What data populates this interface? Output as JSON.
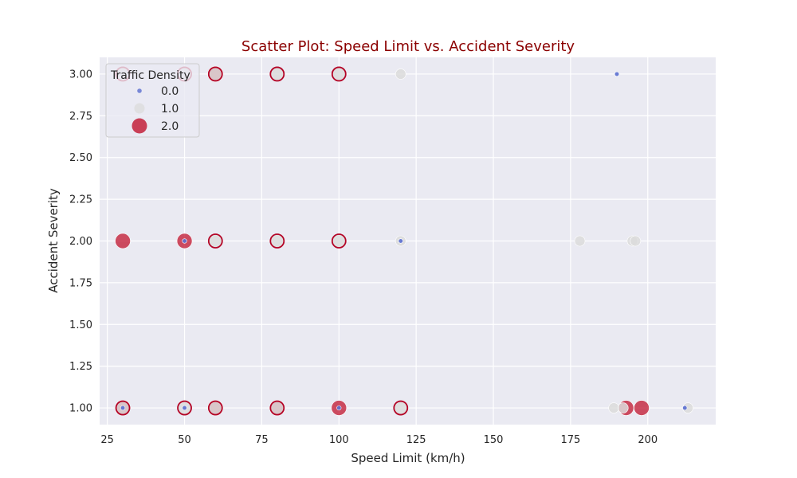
{
  "chart_data": {
    "type": "scatter",
    "title": "Scatter Plot: Speed Limit vs. Accident Severity",
    "xlabel": "Speed Limit (km/h)",
    "ylabel": "Accident Severity",
    "xlim": [
      22.5,
      222
    ],
    "ylim": [
      0.9,
      3.1
    ],
    "xticks": [
      25,
      50,
      75,
      100,
      125,
      150,
      175,
      200
    ],
    "yticks": [
      1.0,
      1.25,
      1.5,
      1.75,
      2.0,
      2.25,
      2.5,
      2.75,
      3.0
    ],
    "ytick_labels": [
      "1.00",
      "1.25",
      "1.50",
      "1.75",
      "2.00",
      "2.25",
      "2.50",
      "2.75",
      "3.00"
    ],
    "grid": true,
    "hue_variable": "Traffic Density",
    "size_variable": "Traffic Density",
    "legend": {
      "title": "Traffic Density",
      "placement": "top-left",
      "entries": [
        {
          "label": "0.0",
          "value": 0.0
        },
        {
          "label": "1.0",
          "value": 1.0
        },
        {
          "label": "2.0",
          "value": 2.0
        }
      ]
    },
    "colors": {
      "density_0": "#5b6fd0",
      "density_1": "#dcdcdc",
      "density_2": "#c0142e",
      "outline_red": "#b40426",
      "background": "#eaeaf2",
      "title": "#8b0000"
    },
    "points": [
      {
        "x": 30,
        "y": 3.0,
        "density": 1.0,
        "edge": "red"
      },
      {
        "x": 50,
        "y": 3.0,
        "density": 1.0,
        "edge": "red"
      },
      {
        "x": 60,
        "y": 3.0,
        "density": 2.0
      },
      {
        "x": 60,
        "y": 3.0,
        "density": 1.0,
        "edge": "red"
      },
      {
        "x": 80,
        "y": 3.0,
        "density": 1.0,
        "edge": "red"
      },
      {
        "x": 100,
        "y": 3.0,
        "density": 1.0,
        "edge": "red"
      },
      {
        "x": 120,
        "y": 3.0,
        "density": 1.0
      },
      {
        "x": 190,
        "y": 3.0,
        "density": 0.0
      },
      {
        "x": 30,
        "y": 2.0,
        "density": 2.0
      },
      {
        "x": 50,
        "y": 2.0,
        "density": 2.0
      },
      {
        "x": 50,
        "y": 2.0,
        "density": 0.0
      },
      {
        "x": 60,
        "y": 2.0,
        "density": 1.0,
        "edge": "red"
      },
      {
        "x": 80,
        "y": 2.0,
        "density": 1.0,
        "edge": "red"
      },
      {
        "x": 100,
        "y": 2.0,
        "density": 1.0,
        "edge": "red"
      },
      {
        "x": 120,
        "y": 2.0,
        "density": 1.0
      },
      {
        "x": 120,
        "y": 2.0,
        "density": 0.0
      },
      {
        "x": 178,
        "y": 2.0,
        "density": 1.0
      },
      {
        "x": 195,
        "y": 2.0,
        "density": 1.0
      },
      {
        "x": 196,
        "y": 2.0,
        "density": 1.0
      },
      {
        "x": 30,
        "y": 1.0,
        "density": 2.0
      },
      {
        "x": 30,
        "y": 1.0,
        "density": 1.0,
        "edge": "red"
      },
      {
        "x": 30,
        "y": 1.0,
        "density": 0.0
      },
      {
        "x": 50,
        "y": 1.0,
        "density": 1.0,
        "edge": "red"
      },
      {
        "x": 50,
        "y": 1.0,
        "density": 0.0
      },
      {
        "x": 60,
        "y": 1.0,
        "density": 1.0,
        "edge": "red"
      },
      {
        "x": 60,
        "y": 1.0,
        "density": 2.0
      },
      {
        "x": 80,
        "y": 1.0,
        "density": 2.0
      },
      {
        "x": 80,
        "y": 1.0,
        "density": 1.0,
        "edge": "red"
      },
      {
        "x": 100,
        "y": 1.0,
        "density": 2.0
      },
      {
        "x": 100,
        "y": 1.0,
        "density": 0.0
      },
      {
        "x": 120,
        "y": 1.0,
        "density": 1.0,
        "edge": "red"
      },
      {
        "x": 189,
        "y": 1.0,
        "density": 1.0
      },
      {
        "x": 192,
        "y": 1.0,
        "density": 1.0
      },
      {
        "x": 193,
        "y": 1.0,
        "density": 2.0
      },
      {
        "x": 198,
        "y": 1.0,
        "density": 2.0
      },
      {
        "x": 212,
        "y": 1.0,
        "density": 0.0
      },
      {
        "x": 213,
        "y": 1.0,
        "density": 1.0
      }
    ]
  }
}
